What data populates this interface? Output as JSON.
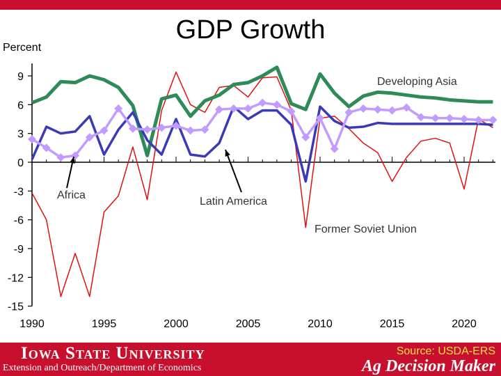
{
  "chart_data": {
    "type": "line",
    "title": "GDP Growth",
    "ylabel": "Percent",
    "xlabel": "",
    "xlim": [
      1990,
      2022.5
    ],
    "ylim": [
      -15,
      10.5
    ],
    "x_ticks": [
      1990,
      1995,
      2000,
      2005,
      2010,
      2015,
      2020
    ],
    "y_ticks": [
      9,
      6,
      3,
      0,
      -3,
      -6,
      -9,
      -12,
      -15
    ],
    "grid": false,
    "x": [
      1990,
      1991,
      1992,
      1993,
      1994,
      1995,
      1996,
      1997,
      1998,
      1999,
      2000,
      2001,
      2002,
      2003,
      2004,
      2005,
      2006,
      2007,
      2008,
      2009,
      2010,
      2011,
      2012,
      2013,
      2014,
      2015,
      2016,
      2017,
      2018,
      2019,
      2020,
      2021,
      2022
    ],
    "series": [
      {
        "name": "Developing Asia",
        "color": "#2e8b57",
        "values": [
          6.2,
          6.8,
          8.4,
          8.3,
          9.0,
          8.6,
          7.8,
          5.9,
          0.7,
          6.6,
          7.0,
          4.8,
          6.4,
          7.0,
          8.1,
          8.3,
          9.0,
          9.9,
          6.1,
          5.5,
          9.2,
          7.2,
          5.8,
          6.9,
          7.3,
          7.2,
          7.0,
          6.8,
          6.7,
          6.5,
          6.4,
          6.3,
          6.3
        ]
      },
      {
        "name": "Latin America",
        "color": "#3a3ab8",
        "values": [
          0.3,
          3.7,
          3.0,
          3.2,
          4.8,
          0.8,
          3.4,
          5.2,
          2.3,
          0.8,
          4.5,
          0.8,
          0.6,
          2.0,
          5.8,
          4.5,
          5.4,
          5.4,
          3.9,
          -2.0,
          5.8,
          4.3,
          3.6,
          3.7,
          4.1,
          4.0,
          4.0,
          4.0,
          4.0,
          4.0,
          4.0,
          4.0,
          3.9
        ]
      },
      {
        "name": "Africa",
        "color": "#c19bff",
        "values": [
          2.4,
          1.5,
          0.5,
          0.7,
          2.6,
          3.3,
          5.6,
          3.5,
          3.4,
          3.6,
          3.8,
          3.3,
          3.4,
          5.5,
          5.6,
          5.6,
          6.2,
          6.0,
          5.3,
          2.6,
          4.6,
          1.4,
          5.2,
          5.6,
          5.5,
          5.4,
          5.7,
          4.7,
          4.6,
          4.6,
          4.5,
          4.4,
          4.4
        ]
      },
      {
        "name": "Former Soviet Union",
        "color": "#e01010",
        "values": [
          -3.2,
          -6.0,
          -14.0,
          -9.5,
          -14.0,
          -5.2,
          -3.5,
          1.6,
          -3.9,
          5.4,
          9.4,
          6.0,
          5.2,
          7.8,
          8.0,
          6.8,
          8.8,
          8.9,
          5.4,
          -6.8,
          4.6,
          4.8,
          3.5,
          2.0,
          1.0,
          -2.0,
          0.5,
          2.2,
          2.5,
          2.0,
          -2.8,
          4.5,
          3.6
        ]
      }
    ],
    "annotations": [
      {
        "text": "Developing Asia",
        "series": "Developing Asia"
      },
      {
        "text": "Africa",
        "series": "Africa"
      },
      {
        "text": "Latin America",
        "series": "Latin America"
      },
      {
        "text": "Former Soviet Union",
        "series": "Former Soviet Union"
      }
    ],
    "marker_series": "Africa"
  },
  "footer": {
    "university": "Iowa State University",
    "department": "Extension and Outreach/Department of Economics",
    "source": "Source: USDA-ERS",
    "brand": "Ag Decision Maker"
  }
}
